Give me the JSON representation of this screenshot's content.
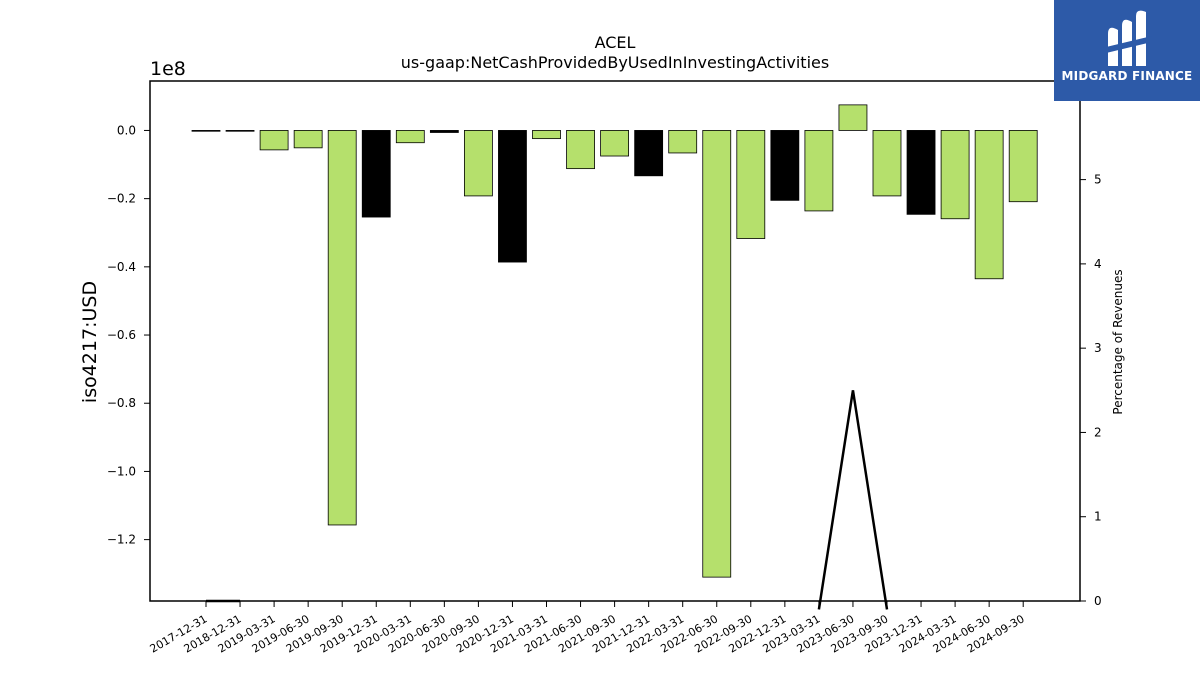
{
  "chart_data": {
    "type": "bar",
    "title": "ACEL",
    "subtitle": "us-gaap:NetCashProvidedByUsedInInvestingActivities",
    "ylabel": "iso4217:USD",
    "y_offset_label": "1e8",
    "y2label": "Percentage of Revenues",
    "ylim": [
      -1.38,
      0.145
    ],
    "y2lim": [
      0,
      6.17
    ],
    "yticks": [
      "−1.2",
      "−1.0",
      "−0.8",
      "−0.6",
      "−0.4",
      "−0.2",
      "0.0"
    ],
    "yticks_values": [
      -1.2,
      -1.0,
      -0.8,
      -0.6,
      -0.4,
      -0.2,
      0.0
    ],
    "y2ticks": [
      "0",
      "1",
      "2",
      "3",
      "4",
      "5"
    ],
    "y2ticks_values": [
      0,
      1,
      2,
      3,
      4,
      5
    ],
    "categories": [
      "2017-12-31",
      "2018-12-31",
      "2019-03-31",
      "2019-06-30",
      "2019-09-30",
      "2019-12-31",
      "2020-03-31",
      "2020-06-30",
      "2020-09-30",
      "2020-12-31",
      "2021-03-31",
      "2021-06-30",
      "2021-09-30",
      "2021-12-31",
      "2022-03-31",
      "2022-06-30",
      "2022-09-30",
      "2022-12-31",
      "2023-03-31",
      "2023-06-30",
      "2023-09-30",
      "2023-12-31",
      "2024-03-31",
      "2024-06-30",
      "2024-09-30"
    ],
    "values": [
      -0.001,
      -0.001,
      -0.057,
      -0.051,
      -1.157,
      -0.254,
      -0.036,
      -0.006,
      -0.192,
      -0.386,
      -0.024,
      -0.112,
      -0.075,
      -0.133,
      -0.066,
      -1.31,
      -0.317,
      -0.205,
      -0.236,
      0.075,
      -0.192,
      -0.246,
      -0.259,
      -0.435,
      -0.209
    ],
    "bar_colors": [
      "#000000",
      "#000000",
      "#b5e06c",
      "#b5e06c",
      "#b5e06c",
      "#000000",
      "#b5e06c",
      "#000000",
      "#b5e06c",
      "#000000",
      "#b5e06c",
      "#b5e06c",
      "#b5e06c",
      "#000000",
      "#b5e06c",
      "#b5e06c",
      "#b5e06c",
      "#000000",
      "#b5e06c",
      "#b5e06c",
      "#b5e06c",
      "#000000",
      "#b5e06c",
      "#b5e06c",
      "#b5e06c"
    ],
    "line_series": {
      "values": [
        0.0,
        0.0,
        null,
        null,
        0.0,
        null,
        null,
        null,
        null,
        null,
        null,
        null,
        null,
        null,
        null,
        null,
        null,
        null,
        -0.1,
        2.5,
        -0.1,
        null,
        null,
        null,
        null
      ],
      "color": "#000000"
    },
    "colors": {
      "positive_bar": "#b5e06c",
      "highlight_bar": "#000000",
      "line": "#000000",
      "bar_edge": "#000000"
    }
  },
  "brand": {
    "name": "MIDGARD FINANCE",
    "background": "#2d5aa8"
  }
}
